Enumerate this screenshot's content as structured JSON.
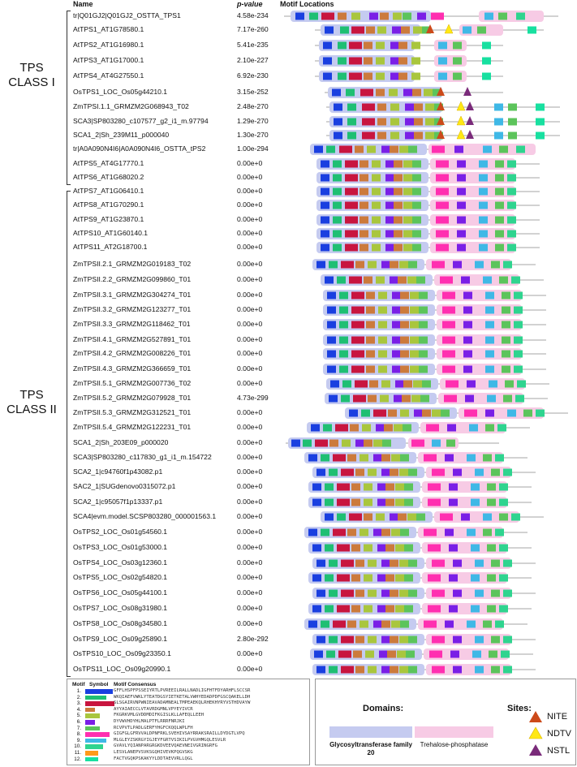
{
  "headers": {
    "name": "Name",
    "pvalue": "p-value",
    "motifs": "Motif Locations"
  },
  "class_labels": {
    "class1": [
      "TPS",
      "CLASS I"
    ],
    "class2": [
      "TPS",
      "CLASS II"
    ]
  },
  "colors": {
    "gt20": "#c5cbf0",
    "tpp": "#f7cbe5",
    "line": "#888888",
    "motifs": [
      "#1a3fe0",
      "#1fbf73",
      "#c8153f",
      "#cc7a3c",
      "#a9c63d",
      "#7a1fe6",
      "#5cc45b",
      "#ff2fb0",
      "#3fb8e6",
      "#2fd48f",
      "#ff9a1a",
      "#18e0a0"
    ],
    "nite": "#cc4a1a",
    "ndtv": "#ffe814",
    "nstl": "#7a2b7a"
  },
  "rows": [
    {
      "name": "tr|Q01GJ2|Q01GJ2_OSTTA_TPS1",
      "p": "4.58e-234",
      "t": "n"
    },
    {
      "name": "AtTPS1_AT1G78580.1",
      "p": "7.17e-260",
      "t": "a"
    },
    {
      "name": "AtTPS2_AT1G16980.1",
      "p": "5.41e-235",
      "t": "b"
    },
    {
      "name": "AtTPS3_AT1G17000.1",
      "p": "2.10e-227",
      "t": "b"
    },
    {
      "name": "AtTPS4_AT4G27550.1",
      "p": "6.92e-230",
      "t": "b"
    },
    {
      "name": "OsTPS1_LOC_Os05g44210.1",
      "p": "3.15e-252",
      "t": "c"
    },
    {
      "name": "ZmTPSI.1.1_GRMZM2G068943_T02",
      "p": "2.48e-270",
      "t": "d"
    },
    {
      "name": "SCA3|SP803280_c107577_g2_i1_m.97794",
      "p": "1.29e-270",
      "t": "d"
    },
    {
      "name": "SCA1_2|Sh_239M11_p000040",
      "p": "1.30e-270",
      "t": "d"
    },
    {
      "name": "tr|A0A090N4I6|A0A090N4I6_OSTTA_tPS2",
      "p": "1.00e-294",
      "t": "e"
    },
    {
      "name": "AtTPS5_AT4G17770.1",
      "p": "0.00e+0",
      "t": "f"
    },
    {
      "name": "AtTPS6_AT1G68020.2",
      "p": "0.00e+0",
      "t": "f"
    },
    {
      "name": "AtTPS7_AT1G06410.1",
      "p": "0.00e+0",
      "t": "f"
    },
    {
      "name": "AtTPS8_AT1G70290.1",
      "p": "0.00e+0",
      "t": "f"
    },
    {
      "name": "AtTPS9_AT1G23870.1",
      "p": "0.00e+0",
      "t": "f"
    },
    {
      "name": "AtTPS10_AT1G60140.1",
      "p": "0.00e+0",
      "t": "f"
    },
    {
      "name": "AtTPS11_AT2G18700.1",
      "p": "0.00e+0",
      "t": "f"
    },
    {
      "name": "ZmTPSII.2.1_GRMZM2G019183_T02",
      "p": "0.00e+0",
      "t": "f"
    },
    {
      "name": "ZmTPSII.2.2_GRMZM2G099860_T01",
      "p": "0.00e+0",
      "t": "f"
    },
    {
      "name": "ZmTPSII.3.1_GRMZM2G304274_T01",
      "p": "0.00e+0",
      "t": "f"
    },
    {
      "name": "ZmTPSII.3.2_GRMZM2G123277_T01",
      "p": "0.00e+0",
      "t": "f"
    },
    {
      "name": "ZmTPSII.3.3_GRMZM2G118462_T01",
      "p": "0.00e+0",
      "t": "f"
    },
    {
      "name": "ZmTPSII.4.1_GRMZM2G527891_T01",
      "p": "0.00e+0",
      "t": "f"
    },
    {
      "name": "ZmTPSII.4.2_GRMZM2G008226_T01",
      "p": "0.00e+0",
      "t": "f"
    },
    {
      "name": "ZmTPSII.4.3_GRMZM2G366659_T01",
      "p": "0.00e+0",
      "t": "f"
    },
    {
      "name": "ZmTPSII.5.1_GRMZM2G007736_T02",
      "p": "0.00e+0",
      "t": "f"
    },
    {
      "name": "ZmTPSII.5.2_GRMZM2G079928_T01",
      "p": "4.73e-299",
      "t": "f"
    },
    {
      "name": "ZmTPSII.5.3_GRMZM2G312521_T01",
      "p": "0.00e+0",
      "t": "f"
    },
    {
      "name": "ZmTPSII.5.4_GRMZM2G122231_T01",
      "p": "0.00e+0",
      "t": "f"
    },
    {
      "name": "SCA1_2|Sh_203E09_p000020",
      "p": "0.00e+0",
      "t": "g"
    },
    {
      "name": "SCA3|SP803280_c117830_g1_i1_m.154722",
      "p": "0.00e+0",
      "t": "f"
    },
    {
      "name": "SCA2_1|c94760f1p43082.p1",
      "p": "0.00e+0",
      "t": "f"
    },
    {
      "name": "SAC2_1|SUGdenovo0315072.p1",
      "p": "0.00e+0",
      "t": "f"
    },
    {
      "name": "SCA2_1|c95057f1p13337.p1",
      "p": "0.00e+0",
      "t": "f"
    },
    {
      "name": "SCA4|evm.model.SCSP803280_000001563.1",
      "p": "0.00e+0",
      "t": "f"
    },
    {
      "name": "OsTPS2_LOC_Os01g54560.1",
      "p": "0.00e+0",
      "t": "f"
    },
    {
      "name": "OsTPS3_LOC_Os01g53000.1",
      "p": "0.00e+0",
      "t": "f"
    },
    {
      "name": "OsTPS4_LOC_Os03g12360.1",
      "p": "0.00e+0",
      "t": "f"
    },
    {
      "name": "OsTPS5_LOC_Os02g54820.1",
      "p": "0.00e+0",
      "t": "f"
    },
    {
      "name": "OsTPS6_LOC_Os05g44100.1",
      "p": "0.00e+0",
      "t": "f"
    },
    {
      "name": "OsTPS7_LOC_Os08g31980.1",
      "p": "0.00e+0",
      "t": "f"
    },
    {
      "name": "OsTPS8_LOC_Os08g34580.1",
      "p": "0.00e+0",
      "t": "f"
    },
    {
      "name": "OsTPS9_LOC_Os09g25890.1",
      "p": "2.80e-292",
      "t": "f"
    },
    {
      "name": "OsTPS10_LOC_Os09g23350.1",
      "p": "0.00e+0",
      "t": "f"
    },
    {
      "name": "OsTPS11_LOC_Os09g20990.1",
      "p": "0.00e+0",
      "t": "f"
    }
  ],
  "motif_legend": {
    "headers": {
      "motif": "Motif",
      "symbol": "Symbol",
      "consensus": "Motif Consensus"
    },
    "items": [
      {
        "num": "1.",
        "consensus": "GFFLHSPFPSSEIYRTLPVREEILRALLNADLIGFHTFDYARHFLSCCSR"
      },
      {
        "num": "2.",
        "consensus": "WKQIAEFVWKLYTEATDGSYIETKETALVWHYEDADPDFGSCQAKELLDH"
      },
      {
        "num": "3.",
        "consensus": "SLSGAIRVNPWNIEAVADAMNEALTMPEAEKQLRHEKHYRYVSTHDVAYW"
      },
      {
        "num": "4.",
        "consensus": "AYYAIAECCLVTAVRDGMNLVPYEYIVCR"
      },
      {
        "num": "5.",
        "consensus": "FKGRKVMLGVDDMDIFKGISLKLLAFEQLLEEH"
      },
      {
        "num": "6.",
        "consensus": "DYVWVHDYHLMALPTFLRRRFNRJKI"
      },
      {
        "num": "7.",
        "consensus": "RCVPVTLPADLGERFYHGFCKQQLWPLFH"
      },
      {
        "num": "8.",
        "consensus": "GIGFGLGFRVVALDPNFRKLSVEHIVSAYRRAKSRAILLDYDGTLVPQ"
      },
      {
        "num": "9.",
        "consensus": "MLGLEYZSKRGYIGJEYFGRTVSIKILPVGVHMGQLESVLR"
      },
      {
        "num": "10.",
        "consensus": "GVAVLYQIANPARGRGKDVEEVQAEVNEIVGRINGRFG"
      },
      {
        "num": "11.",
        "consensus": "LESVLANEPVSVKSGQHIVEVKPQGVSKG"
      },
      {
        "num": "12.",
        "consensus": "FACTVGQKPSKAKYYLDDTAEVVRLLQGL"
      }
    ]
  },
  "domains": {
    "title": "Domains:",
    "gt20": "Glycosyltransferase family 20",
    "tpp": "Trehalose-phosphatase"
  },
  "sites": {
    "title": "Sites:",
    "items": [
      "NITE",
      "NDTV",
      "NSTL"
    ]
  }
}
